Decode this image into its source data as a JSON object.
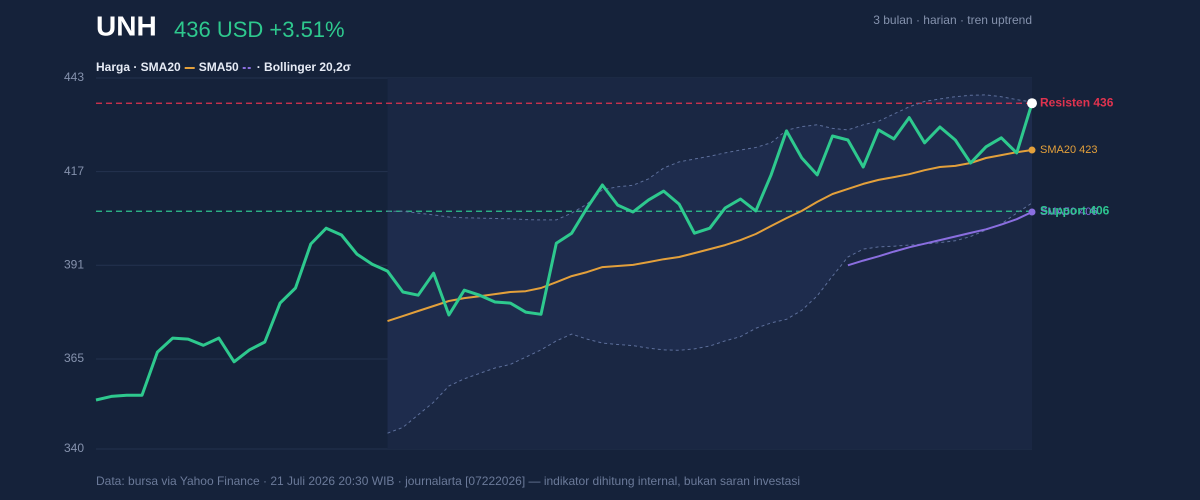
{
  "chart_data": {
    "type": "line",
    "title": "UNH",
    "price_label": "436 USD +3.51%",
    "subtitle": "3 bulan · harian · tren uptrend",
    "source": "Data: bursa via Yahoo Finance · 21 Juli 2026 20:30 WIB · journalarta [07222026] — indikator dihitung internal, bukan saran investasi",
    "legend": [
      "Harga · SMA20",
      "SMA50",
      "· Bollinger 20,2σ"
    ],
    "ylim": [
      340,
      443
    ],
    "yticks": [
      340,
      365,
      391,
      417,
      443
    ],
    "grid": true,
    "series": [
      {
        "color": "#2ec98e",
        "style": "solid",
        "width": 3,
        "values": [
          353.6,
          354.6,
          354.9,
          354.9,
          366.9,
          370.8,
          370.5,
          368.8,
          370.8,
          364.2,
          367.5,
          369.7,
          380.5,
          384.7,
          396.9,
          401.3,
          399.4,
          394.1,
          391.3,
          389.4,
          383.6,
          382.7,
          388.8,
          377.2,
          384.1,
          382.7,
          380.8,
          380.5,
          378,
          377.4,
          397.1,
          399.9,
          406.9,
          413.3,
          407.7,
          405.8,
          409.1,
          411.6,
          408,
          399.9,
          401.3,
          406.9,
          409.4,
          406.1,
          416.1,
          428.3,
          420.8,
          416.1,
          426.9,
          425.8,
          418.3,
          428.6,
          426.1,
          432,
          425,
          429.4,
          425.8,
          419.4,
          423.9,
          426.4,
          422.2,
          436
        ]
      },
      {
        "color": "#e3a03b",
        "style": "solid",
        "width": 2,
        "end_label": "SMA20 423",
        "values": [
          null,
          null,
          null,
          null,
          null,
          null,
          null,
          null,
          null,
          null,
          null,
          null,
          null,
          null,
          null,
          null,
          null,
          null,
          null,
          375.5,
          376.9,
          378.3,
          379.7,
          381.1,
          381.9,
          382.4,
          383,
          383.6,
          383.8,
          384.7,
          386.3,
          388,
          389.1,
          390.5,
          390.8,
          391.1,
          391.9,
          392.7,
          393.3,
          394.4,
          395.5,
          396.6,
          398,
          399.7,
          401.9,
          404.1,
          406.1,
          408.6,
          410.8,
          412.2,
          413.6,
          414.7,
          415.5,
          416.3,
          417.4,
          418.3,
          418.6,
          419.4,
          420.8,
          421.6,
          422.4,
          423
        ]
      },
      {
        "color": "#8a6ee0",
        "style": "solid",
        "width": 2,
        "end_label": "SMA50 406",
        "values": [
          null,
          null,
          null,
          null,
          null,
          null,
          null,
          null,
          null,
          null,
          null,
          null,
          null,
          null,
          null,
          null,
          null,
          null,
          null,
          null,
          null,
          null,
          null,
          null,
          null,
          null,
          null,
          null,
          null,
          null,
          null,
          null,
          null,
          null,
          null,
          null,
          null,
          null,
          null,
          null,
          null,
          null,
          null,
          null,
          null,
          null,
          null,
          null,
          null,
          391,
          392.3,
          393.5,
          394.8,
          396,
          397,
          398,
          399,
          400,
          401,
          402.3,
          403.8,
          405.8
        ]
      },
      {
        "color": "#5d6f9b",
        "style": "dashed",
        "width": 1,
        "values": [
          null,
          null,
          null,
          null,
          null,
          null,
          null,
          null,
          null,
          null,
          null,
          null,
          null,
          null,
          null,
          null,
          null,
          null,
          null,
          406,
          406,
          405.5,
          405,
          404.4,
          404.2,
          404.1,
          404,
          403.9,
          403.7,
          403.6,
          403.6,
          405.5,
          408,
          412,
          412.8,
          413.2,
          415,
          418,
          419.7,
          420.5,
          421.3,
          422.2,
          423,
          423.7,
          425,
          428.5,
          429.5,
          430,
          429,
          428.6,
          430,
          431,
          433,
          435,
          436.5,
          437.2,
          437.8,
          438.2,
          438.3,
          437.8,
          437,
          436.3
        ]
      },
      {
        "color": "#5d6f9b",
        "style": "dashed",
        "width": 1,
        "values": [
          null,
          null,
          null,
          null,
          null,
          null,
          null,
          null,
          null,
          null,
          null,
          null,
          null,
          null,
          null,
          null,
          null,
          null,
          null,
          344.4,
          346,
          349.5,
          353,
          357.5,
          359.5,
          361,
          362.5,
          363.5,
          365.5,
          367.5,
          370,
          371.9,
          370.5,
          369.4,
          369,
          368.7,
          368,
          367.5,
          367.4,
          367.8,
          368.6,
          370,
          371.2,
          373.5,
          375,
          376,
          378.5,
          382.5,
          388,
          393.3,
          395.5,
          396.1,
          396.3,
          396.6,
          396.9,
          397.3,
          397.8,
          399,
          400.8,
          402.5,
          405.5,
          408.3
        ]
      }
    ],
    "band_fill": "#1f2e4f",
    "hlines": [
      {
        "value": 436,
        "label": "Resisten 436",
        "color": "#e0334f"
      },
      {
        "value": 406,
        "label": "Support 406",
        "color": "#2dc58f"
      }
    ]
  }
}
